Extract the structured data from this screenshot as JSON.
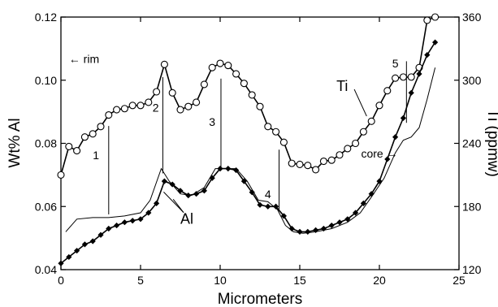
{
  "chart_data": {
    "type": "line",
    "title": "",
    "xlabel": "Micrometers",
    "ylabel_left": "Wt% Al",
    "ylabel_right": "Ti (ppmw)",
    "xlim": [
      0,
      25
    ],
    "ylim_left": [
      0.04,
      0.12
    ],
    "ylim_right": [
      120,
      360
    ],
    "x_ticks": [
      0,
      5,
      10,
      15,
      20,
      25
    ],
    "y_left_ticks": [
      0.04,
      0.06,
      0.08,
      0.1,
      0.12
    ],
    "y_right_ticks": [
      120,
      180,
      240,
      300,
      360
    ],
    "x_tick_labels": [
      "0",
      "5",
      "10",
      "15",
      "20",
      "25"
    ],
    "y_left_tick_labels": [
      "0.04",
      "0.06",
      "0.08",
      "0.10",
      "0.12"
    ],
    "y_right_tick_labels": [
      "120",
      "180",
      "240",
      "300",
      "360"
    ],
    "grid": false,
    "series": [
      {
        "name": "Ti",
        "axis": "right",
        "marker": "open-circle",
        "color": "#000000",
        "x": [
          0,
          0.5,
          1,
          1.5,
          2,
          2.5,
          3,
          3.5,
          4,
          4.5,
          5,
          5.5,
          6,
          6.5,
          7,
          7.5,
          8,
          8.5,
          9,
          9.5,
          10,
          10.5,
          11,
          11.5,
          12,
          12.5,
          13,
          13.5,
          14,
          14.5,
          15,
          15.5,
          16,
          16.5,
          17,
          17.5,
          18,
          18.5,
          19,
          19.5,
          20,
          20.5,
          21,
          21.5,
          22,
          22.5,
          23,
          23.5
        ],
        "y": [
          210,
          237,
          233,
          246,
          249,
          256,
          267,
          272,
          273,
          276,
          276,
          279,
          289,
          315,
          288,
          272,
          275,
          279,
          296,
          312,
          316,
          314,
          306,
          297,
          286,
          275,
          256,
          251,
          241,
          221,
          220,
          219,
          215,
          223,
          224,
          229,
          235,
          240,
          251,
          261,
          276,
          290,
          302,
          303,
          303,
          312,
          357,
          360
        ]
      },
      {
        "name": "Al",
        "axis": "left",
        "marker": "filled-diamond",
        "color": "#000000",
        "x": [
          0,
          0.5,
          1,
          1.5,
          2,
          2.5,
          3,
          3.5,
          4,
          4.5,
          5,
          5.5,
          6,
          6.5,
          7,
          7.5,
          8,
          8.5,
          9,
          9.5,
          10,
          10.5,
          11,
          11.5,
          12,
          12.5,
          13,
          13.5,
          14,
          14.5,
          15,
          15.5,
          16,
          16.5,
          17,
          17.5,
          18,
          18.5,
          19,
          19.5,
          20,
          20.5,
          21,
          21.5,
          22,
          22.5,
          23,
          23.5
        ],
        "y": [
          0.042,
          0.044,
          0.046,
          0.048,
          0.049,
          0.051,
          0.053,
          0.054,
          0.055,
          0.0555,
          0.056,
          0.058,
          0.061,
          0.068,
          0.067,
          0.065,
          0.0635,
          0.064,
          0.065,
          0.069,
          0.072,
          0.072,
          0.0715,
          0.068,
          0.0645,
          0.0605,
          0.06,
          0.06,
          0.057,
          0.053,
          0.052,
          0.052,
          0.0525,
          0.053,
          0.054,
          0.055,
          0.056,
          0.058,
          0.061,
          0.064,
          0.068,
          0.075,
          0.082,
          0.088,
          0.096,
          0.102,
          0.108,
          0.112
        ]
      },
      {
        "name": "",
        "axis": "left",
        "marker": "none",
        "color": "#000000",
        "x": [
          0.3,
          1,
          2,
          3,
          4,
          5,
          5.6,
          6.3,
          6.8,
          7.5,
          8.2,
          9,
          9.7,
          10.4,
          11,
          11.7,
          12.4,
          13,
          13.6,
          14.1,
          14.6,
          15.2,
          16,
          17,
          18,
          18.8,
          19.5,
          20.3,
          21,
          21.5,
          22,
          22.5,
          23,
          23.5
        ],
        "y": [
          0.052,
          0.056,
          0.0565,
          0.0565,
          0.057,
          0.058,
          0.062,
          0.072,
          0.068,
          0.064,
          0.0635,
          0.066,
          0.072,
          0.072,
          0.072,
          0.068,
          0.062,
          0.0615,
          0.059,
          0.054,
          0.052,
          0.0515,
          0.052,
          0.053,
          0.055,
          0.058,
          0.063,
          0.069,
          0.077,
          0.081,
          0.082,
          0.085,
          0.094,
          0.104
        ]
      }
    ],
    "annotations": [
      {
        "text": "1",
        "x": 2.2,
        "y_left": 0.075
      },
      {
        "text": "2",
        "x": 5.95,
        "y_left": 0.09
      },
      {
        "text": "3",
        "x": 9.5,
        "y_left": 0.0855
      },
      {
        "text": "4",
        "x": 13.0,
        "y_left": 0.0627
      },
      {
        "text": "5",
        "x": 21.0,
        "y_left": 0.104
      },
      {
        "text": "← rim",
        "x": 0.5,
        "y_left": 0.1055
      },
      {
        "text": "core →",
        "x": 20.0,
        "y_left": 0.0755
      }
    ],
    "vertical_markers": [
      {
        "x": 3.0,
        "y_left_from": 0.0575,
        "y_left_to": 0.0855
      },
      {
        "x": 6.4,
        "y_left_from": 0.0705,
        "y_left_to": 0.101
      },
      {
        "x": 10.05,
        "y_left_from": 0.0725,
        "y_left_to": 0.1005
      },
      {
        "x": 13.7,
        "y_left_from": 0.0586,
        "y_left_to": 0.078
      },
      {
        "x": 21.7,
        "y_left_from": 0.0865,
        "y_left_to": 0.106
      }
    ],
    "series_labels": [
      {
        "text": "Ti",
        "x": 17.3,
        "y_left": 0.0966,
        "pointer_to": [
          19.2,
          0.0886
        ]
      },
      {
        "text": "Al",
        "x": 7.5,
        "y_left": 0.0545,
        "pointer_to": [
          [
            6.45,
            0.0646
          ],
          [
            7.05,
            0.0623
          ]
        ]
      }
    ]
  }
}
